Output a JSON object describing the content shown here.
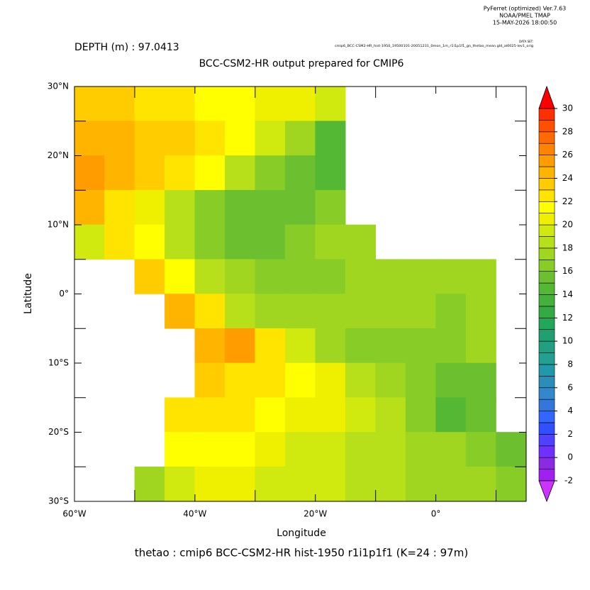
{
  "header": {
    "software": "PyFerret (optimized) Ver.7.63",
    "org": "NOAA/PMEL TMAP",
    "date": "15-MAY-2026 18:00:50",
    "dataset_label": "DATA SET:",
    "dataset": "cmip6_BCC-CSM2-HR_hist-1950_19500101-20051231_0mon_1m_r1i1p1f1_gn_thetao_mean.gld_al0025-lev1_orig"
  },
  "chart_data": {
    "type": "heatmap",
    "depth_label": "DEPTH (m) : 97.0413",
    "title": "BCC-CSM2-HR output prepared for CMIP6",
    "x_label": "Longitude",
    "y_label": "Latitude",
    "footer": "thetao : cmip6 BCC-CSM2-HR hist-1950 r1i1p1f1   (K=24 : 97m)",
    "xlim": [
      -60,
      15
    ],
    "ylim": [
      -30,
      30
    ],
    "xticks": [
      {
        "value": -60,
        "label": "60°W"
      },
      {
        "value": -40,
        "label": "40°W"
      },
      {
        "value": -20,
        "label": "20°W"
      },
      {
        "value": 0,
        "label": "0°"
      }
    ],
    "xminorticks": [
      -50,
      -30,
      -10,
      10
    ],
    "yticks": [
      {
        "value": 30,
        "label": "30°N"
      },
      {
        "value": 20,
        "label": "20°N"
      },
      {
        "value": 10,
        "label": "10°N"
      },
      {
        "value": 0,
        "label": "0°"
      },
      {
        "value": -10,
        "label": "10°S"
      },
      {
        "value": -20,
        "label": "20°S"
      },
      {
        "value": -30,
        "label": "30°S"
      }
    ],
    "yminorticks": [
      25,
      15,
      5,
      -5,
      -15,
      -25
    ],
    "cell_size": 5,
    "x": [
      -57.5,
      -52.5,
      -47.5,
      -42.5,
      -37.5,
      -32.5,
      -27.5,
      -22.5,
      -17.5,
      -12.5,
      -7.5,
      -2.5,
      2.5,
      7.5,
      12.5
    ],
    "y": [
      27.5,
      22.5,
      17.5,
      12.5,
      7.5,
      2.5,
      -2.5,
      -7.5,
      -12.5,
      -17.5,
      -22.5,
      -27.5
    ],
    "z": [
      [
        23,
        23,
        22,
        22,
        21,
        21,
        20,
        20,
        19,
        null,
        null,
        null,
        null,
        null,
        null
      ],
      [
        24,
        24,
        23,
        23,
        22,
        21,
        19,
        17,
        14,
        null,
        null,
        null,
        null,
        null,
        null
      ],
      [
        25,
        24,
        23,
        22,
        21,
        18,
        16,
        15,
        14,
        null,
        null,
        null,
        null,
        null,
        null
      ],
      [
        24,
        22,
        20,
        18,
        16,
        15,
        15,
        15,
        16,
        null,
        null,
        null,
        null,
        null,
        null
      ],
      [
        19,
        22,
        21,
        18,
        16,
        15,
        15,
        16,
        17,
        17,
        null,
        null,
        null,
        null,
        null
      ],
      [
        null,
        null,
        23,
        21,
        18,
        17,
        16,
        16,
        16,
        17,
        17,
        17,
        17,
        17,
        null
      ],
      [
        null,
        null,
        null,
        24,
        22,
        18,
        17,
        17,
        17,
        17,
        17,
        17,
        16,
        17,
        null
      ],
      [
        null,
        null,
        null,
        null,
        24,
        25,
        22,
        19,
        17,
        16,
        16,
        16,
        16,
        17,
        null
      ],
      [
        null,
        null,
        null,
        null,
        23,
        22,
        22,
        21,
        20,
        18,
        17,
        16,
        15,
        15,
        null
      ],
      [
        null,
        null,
        null,
        22,
        22,
        22,
        21,
        20,
        20,
        19,
        18,
        16,
        14,
        15,
        null
      ],
      [
        null,
        null,
        null,
        21,
        21,
        21,
        20,
        19,
        19,
        18,
        18,
        17,
        17,
        16,
        15
      ],
      [
        null,
        null,
        17,
        19,
        20,
        20,
        19,
        19,
        19,
        18,
        18,
        17,
        17,
        17,
        16
      ]
    ],
    "levels": [
      -2,
      -1,
      0,
      1,
      2,
      3,
      4,
      5,
      6,
      7,
      8,
      9,
      10,
      11,
      12,
      13,
      14,
      15,
      16,
      17,
      18,
      19,
      20,
      21,
      22,
      23,
      24,
      25,
      26,
      27,
      28,
      29,
      30
    ],
    "colors": [
      "#a020f0",
      "#8a2be2",
      "#7030ff",
      "#5040ff",
      "#3050ff",
      "#3366ff",
      "#3377dd",
      "#3388cc",
      "#2a8fb8",
      "#2299aa",
      "#22a090",
      "#20a080",
      "#20a070",
      "#22a85a",
      "#33aa44",
      "#44b23a",
      "#55b834",
      "#6cc030",
      "#88cc28",
      "#a0d620",
      "#b8e01a",
      "#d0ea10",
      "#eef000",
      "#ffff00",
      "#ffe400",
      "#ffcc00",
      "#ffb400",
      "#ff9c00",
      "#ff8400",
      "#ff6a00",
      "#ff5000",
      "#ff3000"
    ],
    "under_color": "#cc33ff",
    "over_color": "#ff0000",
    "cbar_ticks": [
      30,
      28,
      26,
      24,
      22,
      20,
      18,
      16,
      14,
      12,
      10,
      8,
      6,
      4,
      2,
      0,
      -2
    ]
  }
}
